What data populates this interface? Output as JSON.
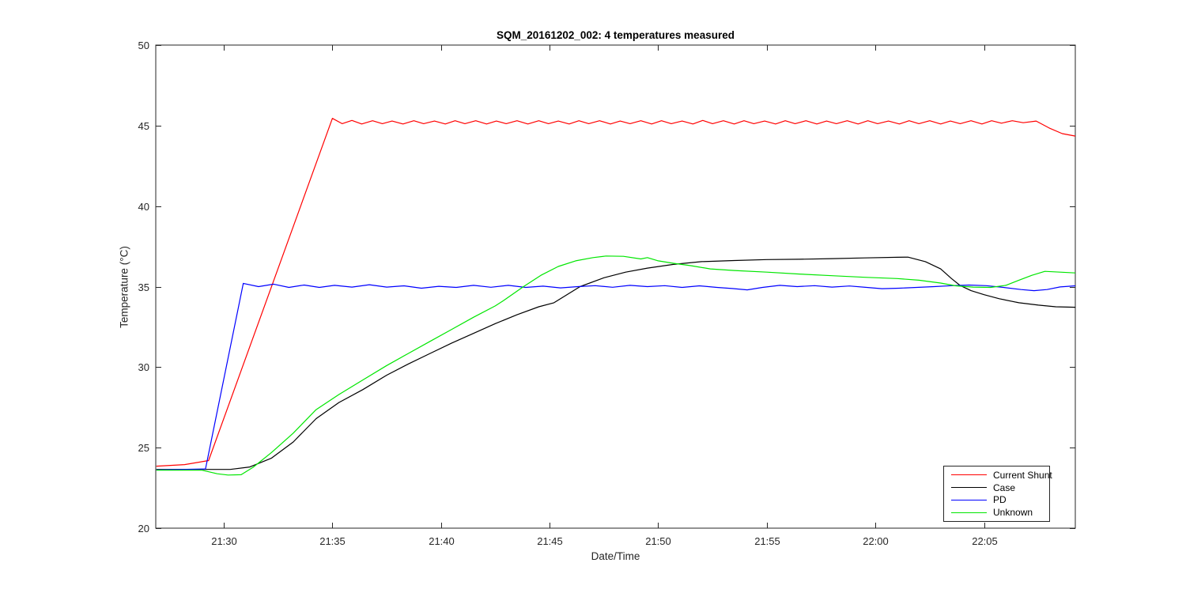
{
  "chart_data": {
    "type": "line",
    "title": "SQM_20161202_002: 4 temperatures measured",
    "xlabel": "Date/Time",
    "ylabel": "Temperature (°C)",
    "x_units": "minutes after 21:00",
    "xlim": [
      26.87,
      69.2
    ],
    "ylim": [
      20,
      50
    ],
    "y_ticks": [
      20,
      25,
      30,
      35,
      40,
      45,
      50
    ],
    "x_ticks": [
      {
        "pos": 30,
        "label": "21:30"
      },
      {
        "pos": 35,
        "label": "21:35"
      },
      {
        "pos": 40,
        "label": "21:40"
      },
      {
        "pos": 45,
        "label": "21:45"
      },
      {
        "pos": 50,
        "label": "21:50"
      },
      {
        "pos": 55,
        "label": "21:55"
      },
      {
        "pos": 60,
        "label": "22:00"
      },
      {
        "pos": 65,
        "label": "22:05"
      }
    ],
    "grid": false,
    "legend_position": "southeast",
    "axis_color": "#262626",
    "series": [
      {
        "name": "Current Shunt",
        "color": "#ff0000",
        "points": [
          [
            26.9,
            23.85
          ],
          [
            28.2,
            23.95
          ],
          [
            29.3,
            24.2
          ],
          [
            35.0,
            45.45
          ],
          [
            35.45,
            45.12
          ],
          [
            35.9,
            45.32
          ],
          [
            36.35,
            45.1
          ],
          [
            36.85,
            45.3
          ],
          [
            37.3,
            45.12
          ],
          [
            37.75,
            45.28
          ],
          [
            38.25,
            45.1
          ],
          [
            38.75,
            45.3
          ],
          [
            39.2,
            45.12
          ],
          [
            39.7,
            45.28
          ],
          [
            40.2,
            45.1
          ],
          [
            40.65,
            45.3
          ],
          [
            41.1,
            45.12
          ],
          [
            41.6,
            45.3
          ],
          [
            42.1,
            45.1
          ],
          [
            42.55,
            45.28
          ],
          [
            43.0,
            45.12
          ],
          [
            43.5,
            45.3
          ],
          [
            44.0,
            45.1
          ],
          [
            44.5,
            45.3
          ],
          [
            44.95,
            45.12
          ],
          [
            45.4,
            45.28
          ],
          [
            45.9,
            45.1
          ],
          [
            46.35,
            45.3
          ],
          [
            46.8,
            45.12
          ],
          [
            47.3,
            45.3
          ],
          [
            47.8,
            45.1
          ],
          [
            48.25,
            45.28
          ],
          [
            48.7,
            45.12
          ],
          [
            49.2,
            45.3
          ],
          [
            49.7,
            45.1
          ],
          [
            50.15,
            45.3
          ],
          [
            50.6,
            45.12
          ],
          [
            51.1,
            45.28
          ],
          [
            51.6,
            45.1
          ],
          [
            52.05,
            45.32
          ],
          [
            52.5,
            45.12
          ],
          [
            53.0,
            45.3
          ],
          [
            53.5,
            45.1
          ],
          [
            53.95,
            45.3
          ],
          [
            54.4,
            45.12
          ],
          [
            54.9,
            45.28
          ],
          [
            55.4,
            45.1
          ],
          [
            55.85,
            45.3
          ],
          [
            56.3,
            45.12
          ],
          [
            56.8,
            45.3
          ],
          [
            57.3,
            45.1
          ],
          [
            57.75,
            45.28
          ],
          [
            58.2,
            45.12
          ],
          [
            58.7,
            45.3
          ],
          [
            59.2,
            45.1
          ],
          [
            59.65,
            45.3
          ],
          [
            60.1,
            45.12
          ],
          [
            60.6,
            45.28
          ],
          [
            61.1,
            45.1
          ],
          [
            61.55,
            45.3
          ],
          [
            62.0,
            45.12
          ],
          [
            62.5,
            45.3
          ],
          [
            63.0,
            45.1
          ],
          [
            63.45,
            45.28
          ],
          [
            63.9,
            45.12
          ],
          [
            64.4,
            45.3
          ],
          [
            64.9,
            45.1
          ],
          [
            65.35,
            45.3
          ],
          [
            65.8,
            45.15
          ],
          [
            66.3,
            45.3
          ],
          [
            66.8,
            45.18
          ],
          [
            67.4,
            45.28
          ],
          [
            68.0,
            44.85
          ],
          [
            68.6,
            44.5
          ],
          [
            69.2,
            44.35
          ]
        ]
      },
      {
        "name": "Case",
        "color": "#000000",
        "points": [
          [
            26.9,
            23.65
          ],
          [
            30.3,
            23.65
          ],
          [
            31.2,
            23.8
          ],
          [
            32.2,
            24.35
          ],
          [
            33.2,
            25.35
          ],
          [
            34.25,
            26.8
          ],
          [
            35.3,
            27.8
          ],
          [
            36.4,
            28.6
          ],
          [
            37.5,
            29.5
          ],
          [
            38.5,
            30.2
          ],
          [
            39.5,
            30.85
          ],
          [
            40.5,
            31.5
          ],
          [
            41.5,
            32.1
          ],
          [
            42.5,
            32.7
          ],
          [
            43.5,
            33.25
          ],
          [
            44.5,
            33.75
          ],
          [
            45.2,
            34.0
          ],
          [
            46.4,
            35.0
          ],
          [
            47.5,
            35.55
          ],
          [
            48.5,
            35.9
          ],
          [
            49.5,
            36.15
          ],
          [
            50.7,
            36.38
          ],
          [
            52.0,
            36.55
          ],
          [
            53.5,
            36.62
          ],
          [
            55.0,
            36.68
          ],
          [
            56.5,
            36.7
          ],
          [
            58.0,
            36.74
          ],
          [
            59.5,
            36.78
          ],
          [
            61.0,
            36.82
          ],
          [
            61.5,
            36.83
          ],
          [
            62.3,
            36.55
          ],
          [
            63.0,
            36.1
          ],
          [
            63.5,
            35.5
          ],
          [
            63.9,
            35.07
          ],
          [
            64.4,
            34.75
          ],
          [
            65.0,
            34.5
          ],
          [
            65.7,
            34.25
          ],
          [
            66.6,
            34.0
          ],
          [
            67.5,
            33.85
          ],
          [
            68.3,
            33.75
          ],
          [
            69.2,
            33.72
          ]
        ]
      },
      {
        "name": "PD",
        "color": "#0000ff",
        "points": [
          [
            26.9,
            23.62
          ],
          [
            29.16,
            23.68
          ],
          [
            30.9,
            35.2
          ],
          [
            31.6,
            35.0
          ],
          [
            32.3,
            35.15
          ],
          [
            33.0,
            34.95
          ],
          [
            33.7,
            35.1
          ],
          [
            34.4,
            34.95
          ],
          [
            35.1,
            35.08
          ],
          [
            35.9,
            34.97
          ],
          [
            36.7,
            35.12
          ],
          [
            37.5,
            34.97
          ],
          [
            38.3,
            35.05
          ],
          [
            39.1,
            34.9
          ],
          [
            39.9,
            35.02
          ],
          [
            40.7,
            34.95
          ],
          [
            41.5,
            35.08
          ],
          [
            42.3,
            34.96
          ],
          [
            43.1,
            35.08
          ],
          [
            43.9,
            34.95
          ],
          [
            44.7,
            35.03
          ],
          [
            45.5,
            34.92
          ],
          [
            46.3,
            35.0
          ],
          [
            47.1,
            35.06
          ],
          [
            47.9,
            34.96
          ],
          [
            48.7,
            35.08
          ],
          [
            49.5,
            35.0
          ],
          [
            50.3,
            35.06
          ],
          [
            51.1,
            34.95
          ],
          [
            51.9,
            35.05
          ],
          [
            52.7,
            34.95
          ],
          [
            53.4,
            34.88
          ],
          [
            54.1,
            34.8
          ],
          [
            54.8,
            34.95
          ],
          [
            55.6,
            35.08
          ],
          [
            56.4,
            35.0
          ],
          [
            57.2,
            35.06
          ],
          [
            58.0,
            34.97
          ],
          [
            58.8,
            35.04
          ],
          [
            59.6,
            34.95
          ],
          [
            60.3,
            34.87
          ],
          [
            61.1,
            34.9
          ],
          [
            61.9,
            34.95
          ],
          [
            62.7,
            35.0
          ],
          [
            63.5,
            35.06
          ],
          [
            64.3,
            35.1
          ],
          [
            65.1,
            35.06
          ],
          [
            65.9,
            34.95
          ],
          [
            66.7,
            34.82
          ],
          [
            67.3,
            34.75
          ],
          [
            67.9,
            34.82
          ],
          [
            68.5,
            34.98
          ],
          [
            69.2,
            35.05
          ]
        ]
      },
      {
        "name": "Unknown",
        "color": "#00e600",
        "points": [
          [
            26.9,
            23.6
          ],
          [
            29.0,
            23.6
          ],
          [
            29.7,
            23.38
          ],
          [
            30.2,
            23.3
          ],
          [
            30.8,
            23.32
          ],
          [
            31.35,
            23.78
          ],
          [
            32.2,
            24.7
          ],
          [
            33.2,
            25.9
          ],
          [
            34.25,
            27.36
          ],
          [
            35.3,
            28.3
          ],
          [
            36.4,
            29.2
          ],
          [
            37.5,
            30.1
          ],
          [
            38.5,
            30.85
          ],
          [
            39.5,
            31.6
          ],
          [
            40.5,
            32.35
          ],
          [
            41.5,
            33.1
          ],
          [
            42.5,
            33.8
          ],
          [
            42.9,
            34.15
          ],
          [
            43.8,
            35.0
          ],
          [
            44.6,
            35.7
          ],
          [
            45.4,
            36.25
          ],
          [
            46.2,
            36.6
          ],
          [
            47.0,
            36.8
          ],
          [
            47.6,
            36.9
          ],
          [
            48.4,
            36.88
          ],
          [
            49.2,
            36.72
          ],
          [
            49.5,
            36.8
          ],
          [
            50.0,
            36.6
          ],
          [
            50.7,
            36.45
          ],
          [
            51.5,
            36.3
          ],
          [
            52.4,
            36.1
          ],
          [
            53.5,
            36.0
          ],
          [
            55.0,
            35.9
          ],
          [
            56.5,
            35.78
          ],
          [
            58.0,
            35.68
          ],
          [
            59.5,
            35.58
          ],
          [
            61.0,
            35.5
          ],
          [
            62.0,
            35.4
          ],
          [
            63.0,
            35.22
          ],
          [
            63.7,
            35.05
          ],
          [
            64.5,
            34.97
          ],
          [
            65.3,
            34.95
          ],
          [
            66.0,
            35.08
          ],
          [
            66.6,
            35.4
          ],
          [
            67.2,
            35.7
          ],
          [
            67.8,
            35.95
          ],
          [
            68.5,
            35.9
          ],
          [
            69.2,
            35.85
          ]
        ]
      }
    ]
  }
}
